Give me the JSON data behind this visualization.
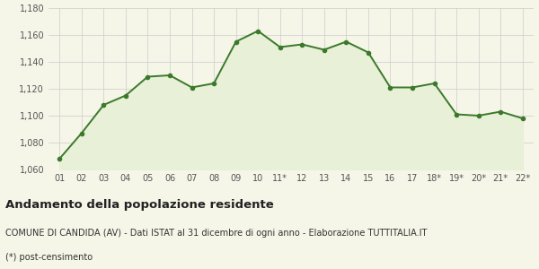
{
  "x_labels": [
    "01",
    "02",
    "03",
    "04",
    "05",
    "06",
    "07",
    "08",
    "09",
    "10",
    "11*",
    "12",
    "13",
    "14",
    "15",
    "16",
    "17",
    "18*",
    "19*",
    "20*",
    "21*",
    "22*"
  ],
  "y_values": [
    1068,
    1087,
    1108,
    1115,
    1129,
    1130,
    1121,
    1124,
    1155,
    1163,
    1151,
    1153,
    1149,
    1155,
    1147,
    1121,
    1121,
    1124,
    1101,
    1100,
    1103,
    1098
  ],
  "ylim": [
    1060,
    1180
  ],
  "yticks": [
    1060,
    1080,
    1100,
    1120,
    1140,
    1160,
    1180
  ],
  "line_color": "#3a7a2a",
  "fill_color": "#e8f0d8",
  "marker": "o",
  "marker_size": 3,
  "line_width": 1.4,
  "bg_color": "#f5f5e8",
  "grid_color": "#cccccc",
  "title": "Andamento della popolazione residente",
  "subtitle": "COMUNE DI CANDIDA (AV) - Dati ISTAT al 31 dicembre di ogni anno - Elaborazione TUTTITALIA.IT",
  "footnote": "(*) post-censimento",
  "title_fontsize": 9.5,
  "subtitle_fontsize": 7,
  "footnote_fontsize": 7,
  "tick_fontsize": 7,
  "ytick_fontsize": 7
}
